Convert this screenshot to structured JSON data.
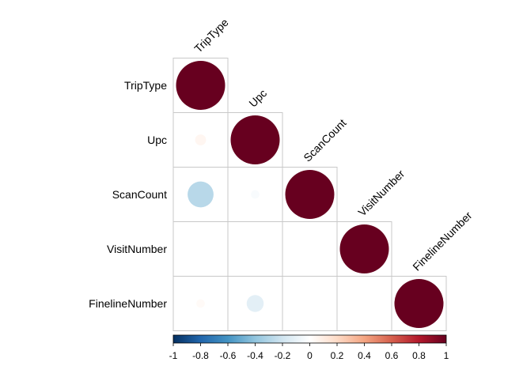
{
  "chart_data": {
    "type": "heatmap",
    "variables": [
      "TripType",
      "Upc",
      "ScanCount",
      "VisitNumber",
      "FinelineNumber"
    ],
    "matrix": [
      [
        1.0,
        null,
        null,
        null,
        null
      ],
      [
        0.05,
        1.0,
        null,
        null,
        null
      ],
      [
        -0.28,
        -0.03,
        1.0,
        null,
        null
      ],
      [
        0.0,
        0.0,
        0.0,
        1.0,
        null
      ],
      [
        0.03,
        -0.12,
        0.0,
        0.0,
        1.0
      ]
    ],
    "colorbar": {
      "min": -1,
      "max": 1,
      "ticks": [
        "-1",
        "-0.8",
        "-0.6",
        "-0.4",
        "-0.2",
        "0",
        "0.2",
        "0.4",
        "0.6",
        "0.8",
        "1"
      ],
      "colors": [
        "#053061",
        "#2166AC",
        "#4393C3",
        "#92C5DE",
        "#D1E5F0",
        "#FFFFFF",
        "#FDDBC7",
        "#F4A582",
        "#D6604D",
        "#B2182B",
        "#67001F"
      ]
    },
    "shape": "circle",
    "layout": "lower-triangle",
    "title": "",
    "xlabel": "",
    "ylabel": ""
  }
}
